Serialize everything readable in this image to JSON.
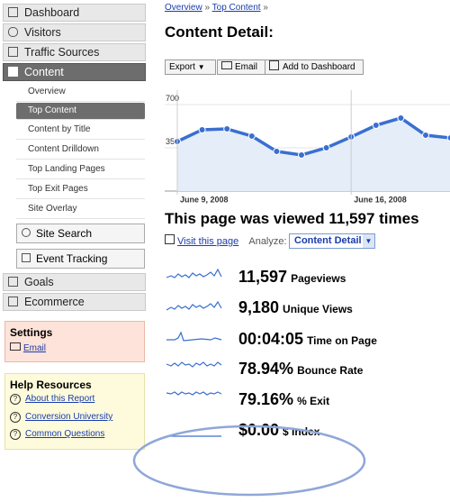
{
  "sidebar": {
    "items": [
      "Dashboard",
      "Visitors",
      "Traffic Sources",
      "Content"
    ],
    "content_items": [
      "Overview",
      "Top Content",
      "Content by Title",
      "Content Drilldown",
      "Top Landing Pages",
      "Top Exit Pages",
      "Site Overlay"
    ],
    "tools": [
      "Site Search",
      "Event Tracking"
    ],
    "more_items": [
      "Goals",
      "Ecommerce"
    ],
    "settings": {
      "title": "Settings",
      "links": [
        "Email"
      ]
    },
    "help": {
      "title": "Help Resources",
      "links": [
        "About this Report",
        "Conversion University",
        "Common Questions"
      ]
    }
  },
  "breadcrumb": [
    "Overview",
    "»",
    "Top Content",
    "»"
  ],
  "title": "Content Detail:",
  "toolbar": [
    "Export",
    "Email",
    "Add to Dashboard"
  ],
  "chart": {
    "type": "line",
    "color": "#3a6fd0",
    "categories": [
      "June 9, 2008",
      null,
      null,
      null,
      null,
      null,
      null,
      "June 16, 2008",
      null,
      null,
      null,
      null
    ],
    "values": [
      401,
      496,
      503,
      445,
      321,
      292,
      350,
      438,
      532,
      591,
      452,
      430
    ],
    "ylim": [
      0,
      700
    ],
    "yticks": [
      350,
      700
    ],
    "grid": true
  },
  "summary": "This page was viewed 11,597 times",
  "visit_link": "Visit this page",
  "analyze_label": "Analyze:",
  "analyze_value": "Content Detail",
  "metrics": [
    {
      "value": "11,597",
      "label": "Pageviews"
    },
    {
      "value": "9,180",
      "label": "Unique Views"
    },
    {
      "value": "00:04:05",
      "label": "Time on Page"
    },
    {
      "value": "78.94%",
      "label": "Bounce Rate"
    },
    {
      "value": "79.16%",
      "label": "% Exit"
    },
    {
      "value": "$0.00",
      "label": "$ Index"
    }
  ]
}
